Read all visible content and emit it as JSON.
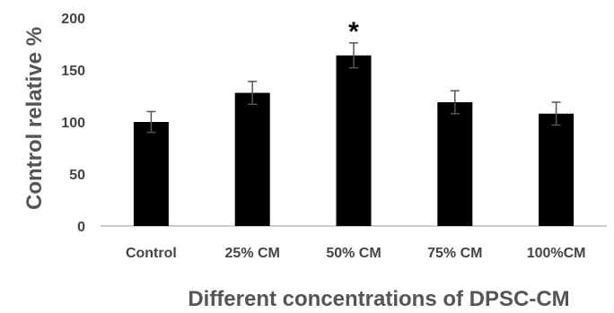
{
  "chart_data": {
    "type": "bar",
    "title": "",
    "xlabel": "Different concentrations of DPSC-CM",
    "ylabel": "Control relative %",
    "ylim": [
      0,
      200
    ],
    "yticks": [
      0,
      50,
      100,
      150,
      200
    ],
    "grid": false,
    "legend": "none",
    "bar_color": "#000000",
    "errorbar_color": "#555555",
    "categories": [
      "Control",
      "25% CM",
      "50% CM",
      "75% CM",
      "100%CM"
    ],
    "values": [
      100,
      128,
      164,
      119,
      108
    ],
    "errors": [
      10,
      11,
      12,
      11,
      11
    ],
    "annotations": [
      {
        "category": "50% CM",
        "text": "*"
      }
    ]
  }
}
